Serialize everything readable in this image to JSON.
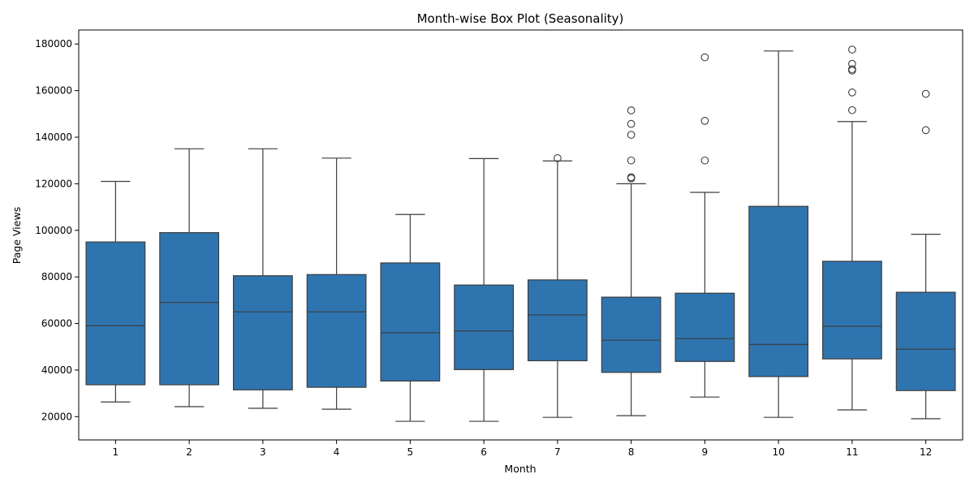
{
  "chart_data": {
    "type": "box",
    "title": "Month-wise Box Plot (Seasonality)",
    "xlabel": "Month",
    "ylabel": "Page Views",
    "ylim": [
      10000,
      186000
    ],
    "yticks": [
      20000,
      40000,
      60000,
      80000,
      100000,
      120000,
      140000,
      160000,
      180000
    ],
    "ytick_labels": [
      "20000",
      "40000",
      "60000",
      "80000",
      "100000",
      "120000",
      "140000",
      "160000",
      "180000"
    ],
    "categories": [
      "1",
      "2",
      "3",
      "4",
      "5",
      "6",
      "7",
      "8",
      "9",
      "10",
      "11",
      "12"
    ],
    "grid": false,
    "box_color": "#2e75b0",
    "line_color": "#3d3d3d",
    "series": [
      {
        "category": "1",
        "whisker_low": 26300,
        "q1": 33700,
        "median": 59000,
        "q3": 95000,
        "whisker_high": 121000,
        "outliers": []
      },
      {
        "category": "2",
        "whisker_low": 24300,
        "q1": 33700,
        "median": 69000,
        "q3": 99000,
        "whisker_high": 135000,
        "outliers": []
      },
      {
        "category": "3",
        "whisker_low": 23600,
        "q1": 31500,
        "median": 65000,
        "q3": 80500,
        "whisker_high": 135000,
        "outliers": []
      },
      {
        "category": "4",
        "whisker_low": 23200,
        "q1": 32600,
        "median": 65000,
        "q3": 81000,
        "whisker_high": 131000,
        "outliers": []
      },
      {
        "category": "5",
        "whisker_low": 18000,
        "q1": 35300,
        "median": 56000,
        "q3": 86000,
        "whisker_high": 106800,
        "outliers": []
      },
      {
        "category": "6",
        "whisker_low": 18000,
        "q1": 40200,
        "median": 56800,
        "q3": 76500,
        "whisker_high": 130800,
        "outliers": []
      },
      {
        "category": "7",
        "whisker_low": 19700,
        "q1": 44000,
        "median": 63700,
        "q3": 78700,
        "whisker_high": 129800,
        "outliers": [
          131000
        ]
      },
      {
        "category": "8",
        "whisker_low": 20400,
        "q1": 39000,
        "median": 52800,
        "q3": 71300,
        "whisker_high": 120000,
        "outliers": [
          122300,
          122800,
          130000,
          141000,
          145700,
          151500
        ]
      },
      {
        "category": "9",
        "whisker_low": 28400,
        "q1": 43700,
        "median": 53500,
        "q3": 73000,
        "whisker_high": 116300,
        "outliers": [
          130000,
          147000,
          174300
        ]
      },
      {
        "category": "10",
        "whisker_low": 19700,
        "q1": 37200,
        "median": 51000,
        "q3": 110300,
        "whisker_high": 177000,
        "outliers": []
      },
      {
        "category": "11",
        "whisker_low": 22900,
        "q1": 44800,
        "median": 58800,
        "q3": 86700,
        "whisker_high": 146700,
        "outliers": [
          151600,
          159200,
          168600,
          169200,
          171500,
          177600
        ]
      },
      {
        "category": "12",
        "whisker_low": 19100,
        "q1": 31200,
        "median": 49000,
        "q3": 73400,
        "whisker_high": 98300,
        "outliers": [
          143000,
          158600
        ]
      }
    ]
  }
}
